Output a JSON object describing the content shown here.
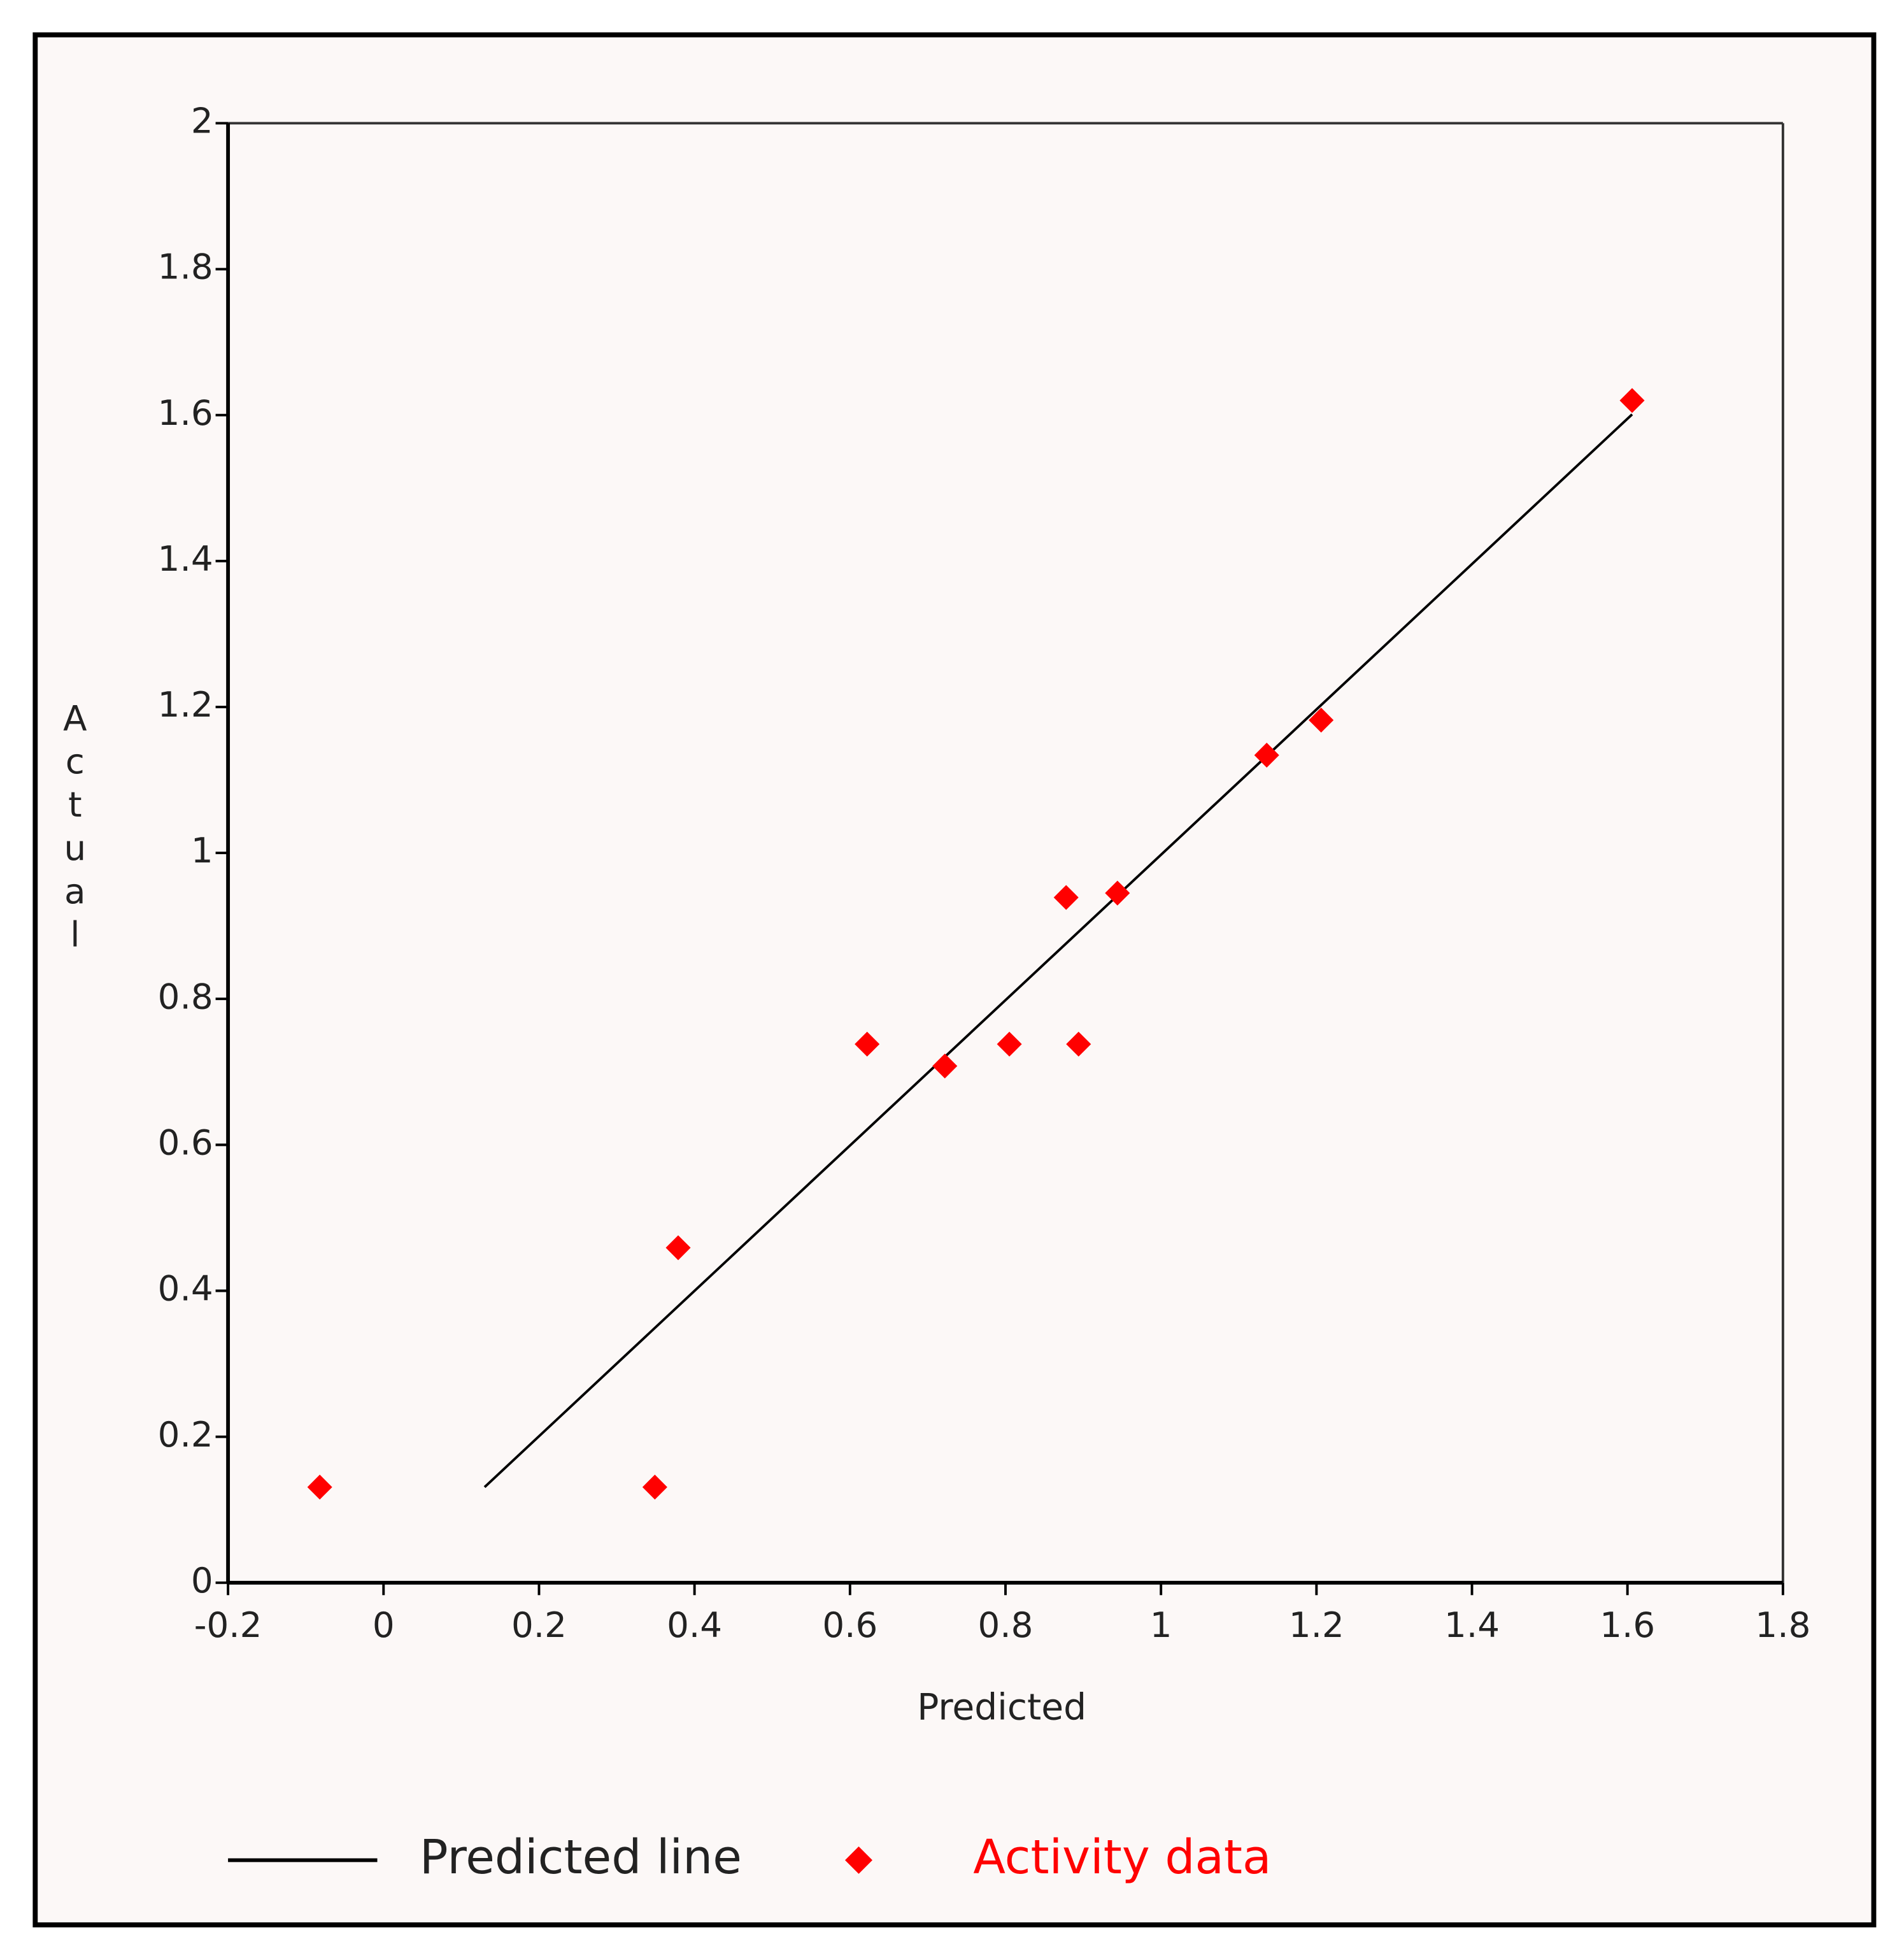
{
  "chart_data": {
    "type": "scatter",
    "x_label": "Predicted",
    "y_label": "Actual",
    "xlim": [
      -0.2,
      1.8
    ],
    "xticks": [
      -0.2,
      0,
      0.2,
      0.4,
      0.6,
      0.8,
      1,
      1.2,
      1.4,
      1.6,
      1.8
    ],
    "ylim": [
      0,
      2
    ],
    "yticks": [
      0,
      0.2,
      0.4,
      0.6,
      0.8,
      1,
      1.2,
      1.4,
      1.6,
      1.8,
      2
    ],
    "grid": false,
    "legend": "bottom",
    "series": [
      {
        "name": "Predicted line",
        "type": "line",
        "color": "#000000",
        "x": [
          0.13,
          1.606
        ],
        "values": [
          0.131,
          1.601
        ]
      },
      {
        "name": "Activity data",
        "type": "scatter",
        "color": "#ff0000",
        "x": [
          -0.082,
          0.349,
          0.379,
          0.622,
          0.722,
          0.805,
          0.878,
          0.894,
          0.944,
          1.136,
          1.206,
          1.606
        ],
        "values": [
          0.131,
          0.131,
          0.459,
          0.738,
          0.708,
          0.738,
          0.939,
          0.738,
          0.945,
          1.134,
          1.182,
          1.62
        ]
      }
    ]
  }
}
